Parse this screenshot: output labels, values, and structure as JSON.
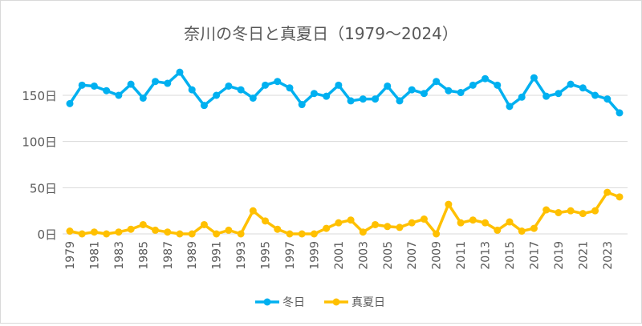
{
  "chart_data": {
    "type": "line",
    "title": "奈川の冬日と真夏日（1979～2024）",
    "xlabel": "",
    "ylabel": "",
    "ylim": [
      0,
      180
    ],
    "yticks": [
      "0日",
      "50日",
      "100日",
      "150日"
    ],
    "ytick_values": [
      0,
      50,
      100,
      150
    ],
    "grid": true,
    "legend": "bottom",
    "x": [
      1979,
      1980,
      1981,
      1982,
      1983,
      1984,
      1985,
      1986,
      1987,
      1988,
      1989,
      1990,
      1991,
      1992,
      1993,
      1994,
      1995,
      1996,
      1997,
      1998,
      1999,
      2000,
      2001,
      2002,
      2003,
      2004,
      2005,
      2006,
      2007,
      2008,
      2009,
      2010,
      2011,
      2012,
      2013,
      2014,
      2015,
      2016,
      2017,
      2018,
      2019,
      2020,
      2021,
      2022,
      2023,
      2024
    ],
    "xticks": [
      "1979",
      "1981",
      "1983",
      "1985",
      "1987",
      "1989",
      "1991",
      "1993",
      "1995",
      "1997",
      "1999",
      "2001",
      "2003",
      "2005",
      "2007",
      "2009",
      "2011",
      "2013",
      "2015",
      "2017",
      "2019",
      "2021",
      "2023"
    ],
    "series": [
      {
        "name": "冬日",
        "color": "#00b0f0",
        "values": [
          141,
          161,
          160,
          155,
          150,
          162,
          147,
          165,
          163,
          175,
          156,
          139,
          150,
          160,
          156,
          147,
          161,
          165,
          158,
          140,
          152,
          149,
          161,
          144,
          146,
          146,
          160,
          144,
          156,
          152,
          165,
          155,
          153,
          161,
          168,
          161,
          138,
          148,
          169,
          149,
          152,
          162,
          158,
          150,
          146,
          131
        ]
      },
      {
        "name": "真夏日",
        "color": "#ffc000",
        "values": [
          3,
          0,
          2,
          0,
          2,
          5,
          10,
          4,
          2,
          0,
          0,
          10,
          0,
          4,
          0,
          25,
          14,
          5,
          0,
          0,
          0,
          6,
          12,
          15,
          2,
          10,
          8,
          7,
          12,
          16,
          0,
          32,
          12,
          15,
          12,
          4,
          13,
          3,
          6,
          26,
          23,
          25,
          22,
          25,
          45,
          40
        ]
      }
    ]
  }
}
